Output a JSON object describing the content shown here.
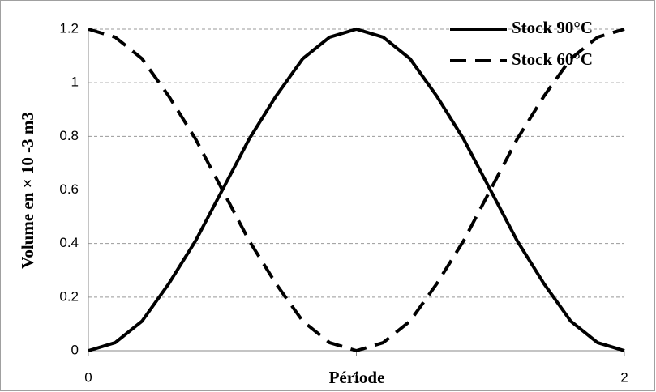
{
  "chart_data": {
    "type": "line",
    "x_label": "Période",
    "y_label": "Volume en × 10 -3 m3",
    "x": [
      0,
      0.1,
      0.2,
      0.3,
      0.4,
      0.5,
      0.6,
      0.7,
      0.8,
      0.9,
      1,
      1.1,
      1.2,
      1.3,
      1.4,
      1.5,
      1.6,
      1.7,
      1.8,
      1.9,
      2
    ],
    "series": [
      {
        "name": "Stock 90°C",
        "color": "#000000",
        "dash": false,
        "values": [
          0,
          0.03,
          0.11,
          0.25,
          0.41,
          0.6,
          0.79,
          0.95,
          1.09,
          1.17,
          1.2,
          1.17,
          1.09,
          0.95,
          0.79,
          0.6,
          0.41,
          0.25,
          0.11,
          0.03,
          0
        ]
      },
      {
        "name": "Stock 60°C",
        "color": "#000000",
        "dash": true,
        "values": [
          1.2,
          1.17,
          1.09,
          0.95,
          0.79,
          0.6,
          0.41,
          0.25,
          0.11,
          0.03,
          0,
          0.03,
          0.11,
          0.25,
          0.41,
          0.6,
          0.79,
          0.95,
          1.09,
          1.17,
          1.2
        ]
      }
    ],
    "xlim": [
      0,
      2
    ],
    "xticks": [
      0,
      1,
      2
    ],
    "ylim": [
      0,
      1.2
    ],
    "yticks": [
      0,
      0.2,
      0.4,
      0.6,
      0.8,
      1,
      1.2
    ],
    "grid": true,
    "legend": "top-right"
  }
}
